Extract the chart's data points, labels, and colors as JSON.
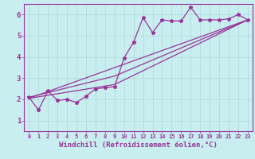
{
  "background_color": "#c8eef0",
  "grid_color": "#aadddd",
  "line_color": "#993399",
  "x_data": [
    0,
    1,
    2,
    3,
    4,
    5,
    6,
    7,
    8,
    9,
    10,
    11,
    12,
    13,
    14,
    15,
    16,
    17,
    18,
    19,
    20,
    21,
    22,
    23
  ],
  "series1": [
    2.1,
    1.5,
    2.4,
    1.95,
    2.0,
    1.85,
    2.15,
    2.5,
    2.55,
    2.6,
    3.95,
    4.7,
    5.85,
    5.15,
    5.75,
    5.7,
    5.7,
    6.35,
    5.75,
    5.75,
    5.75,
    5.8,
    6.0,
    5.75
  ],
  "series2_x": [
    0,
    9,
    23
  ],
  "series2_y": [
    2.1,
    3.1,
    5.75
  ],
  "series3_x": [
    0,
    9,
    23
  ],
  "series3_y": [
    2.05,
    2.7,
    5.75
  ],
  "series4_x": [
    0,
    23
  ],
  "series4_y": [
    2.05,
    5.75
  ],
  "xlabel": "Windchill (Refroidissement éolien,°C)",
  "xlim": [
    -0.5,
    23.5
  ],
  "ylim": [
    0.5,
    6.5
  ],
  "xtick_labels": [
    "0",
    "1",
    "2",
    "3",
    "4",
    "5",
    "6",
    "7",
    "8",
    "9",
    "10",
    "11",
    "12",
    "13",
    "14",
    "15",
    "16",
    "17",
    "18",
    "19",
    "20",
    "21",
    "22",
    "23"
  ],
  "ytick_labels": [
    "1",
    "2",
    "3",
    "4",
    "5",
    "6"
  ],
  "ytick_values": [
    1,
    2,
    3,
    4,
    5,
    6
  ],
  "xtick_fontsize": 5.0,
  "ytick_fontsize": 6.5,
  "xlabel_fontsize": 6.5
}
